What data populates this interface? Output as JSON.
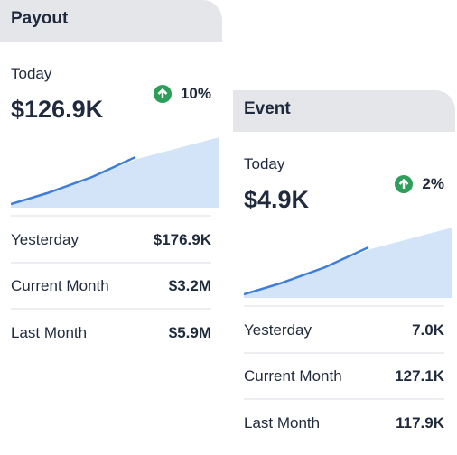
{
  "cards": [
    {
      "title": "Payout",
      "today_label": "Today",
      "today_value": "$126.9K",
      "change": "10%",
      "rows": [
        {
          "label": "Yesterday",
          "value": "$176.9K"
        },
        {
          "label": "Current Month",
          "value": "$3.2M"
        },
        {
          "label": "Last Month",
          "value": "$5.9M"
        }
      ]
    },
    {
      "title": "Event",
      "today_label": "Today",
      "today_value": "$4.9K",
      "change": "2%",
      "rows": [
        {
          "label": "Yesterday",
          "value": "7.0K"
        },
        {
          "label": "Current Month",
          "value": "127.1K"
        },
        {
          "label": "Last Month",
          "value": "117.9K"
        }
      ]
    }
  ]
}
